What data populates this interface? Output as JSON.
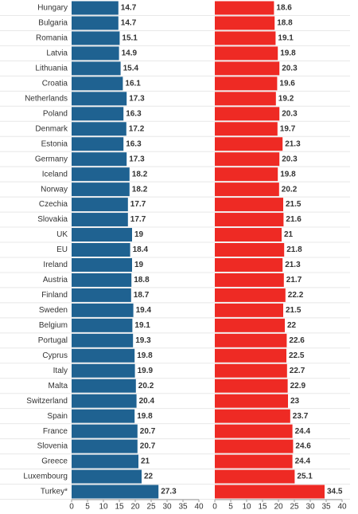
{
  "chart_data": {
    "type": "bar",
    "orientation": "horizontal",
    "categories": [
      "Hungary",
      "Bulgaria",
      "Romania",
      "Latvia",
      "Lithuania",
      "Croatia",
      "Netherlands",
      "Poland",
      "Denmark",
      "Estonia",
      "Germany",
      "Iceland",
      "Norway",
      "Czechia",
      "Slovakia",
      "UK",
      "EU",
      "Ireland",
      "Austria",
      "Finland",
      "Sweden",
      "Belgium",
      "Portugal",
      "Cyprus",
      "Italy",
      "Malta",
      "Switzerland",
      "Spain",
      "France",
      "Slovenia",
      "Greece",
      "Luxembourg",
      "Turkey*"
    ],
    "series": [
      {
        "color": "#1f6291",
        "values": [
          14.7,
          14.7,
          15.1,
          14.9,
          15.4,
          16.1,
          17.3,
          16.3,
          17.2,
          16.3,
          17.3,
          18.2,
          18.2,
          17.7,
          17.7,
          19,
          18.4,
          19,
          18.8,
          18.7,
          19.4,
          19.1,
          19.3,
          19.8,
          19.9,
          20.2,
          20.4,
          19.8,
          20.7,
          20.7,
          21,
          22,
          27.3
        ]
      },
      {
        "color": "#ee2a24",
        "values": [
          18.6,
          18.8,
          19.1,
          19.8,
          20.3,
          19.6,
          19.2,
          20.3,
          19.7,
          21.3,
          20.3,
          19.8,
          20.2,
          21.5,
          21.6,
          21,
          21.8,
          21.3,
          21.7,
          22.2,
          21.5,
          22,
          22.6,
          22.5,
          22.7,
          22.9,
          23,
          23.7,
          24.4,
          24.6,
          24.4,
          25.1,
          34.5
        ]
      }
    ],
    "xlim": [
      0,
      40
    ],
    "xticks": [
      0,
      5,
      10,
      15,
      20,
      25,
      30,
      35,
      40
    ]
  }
}
